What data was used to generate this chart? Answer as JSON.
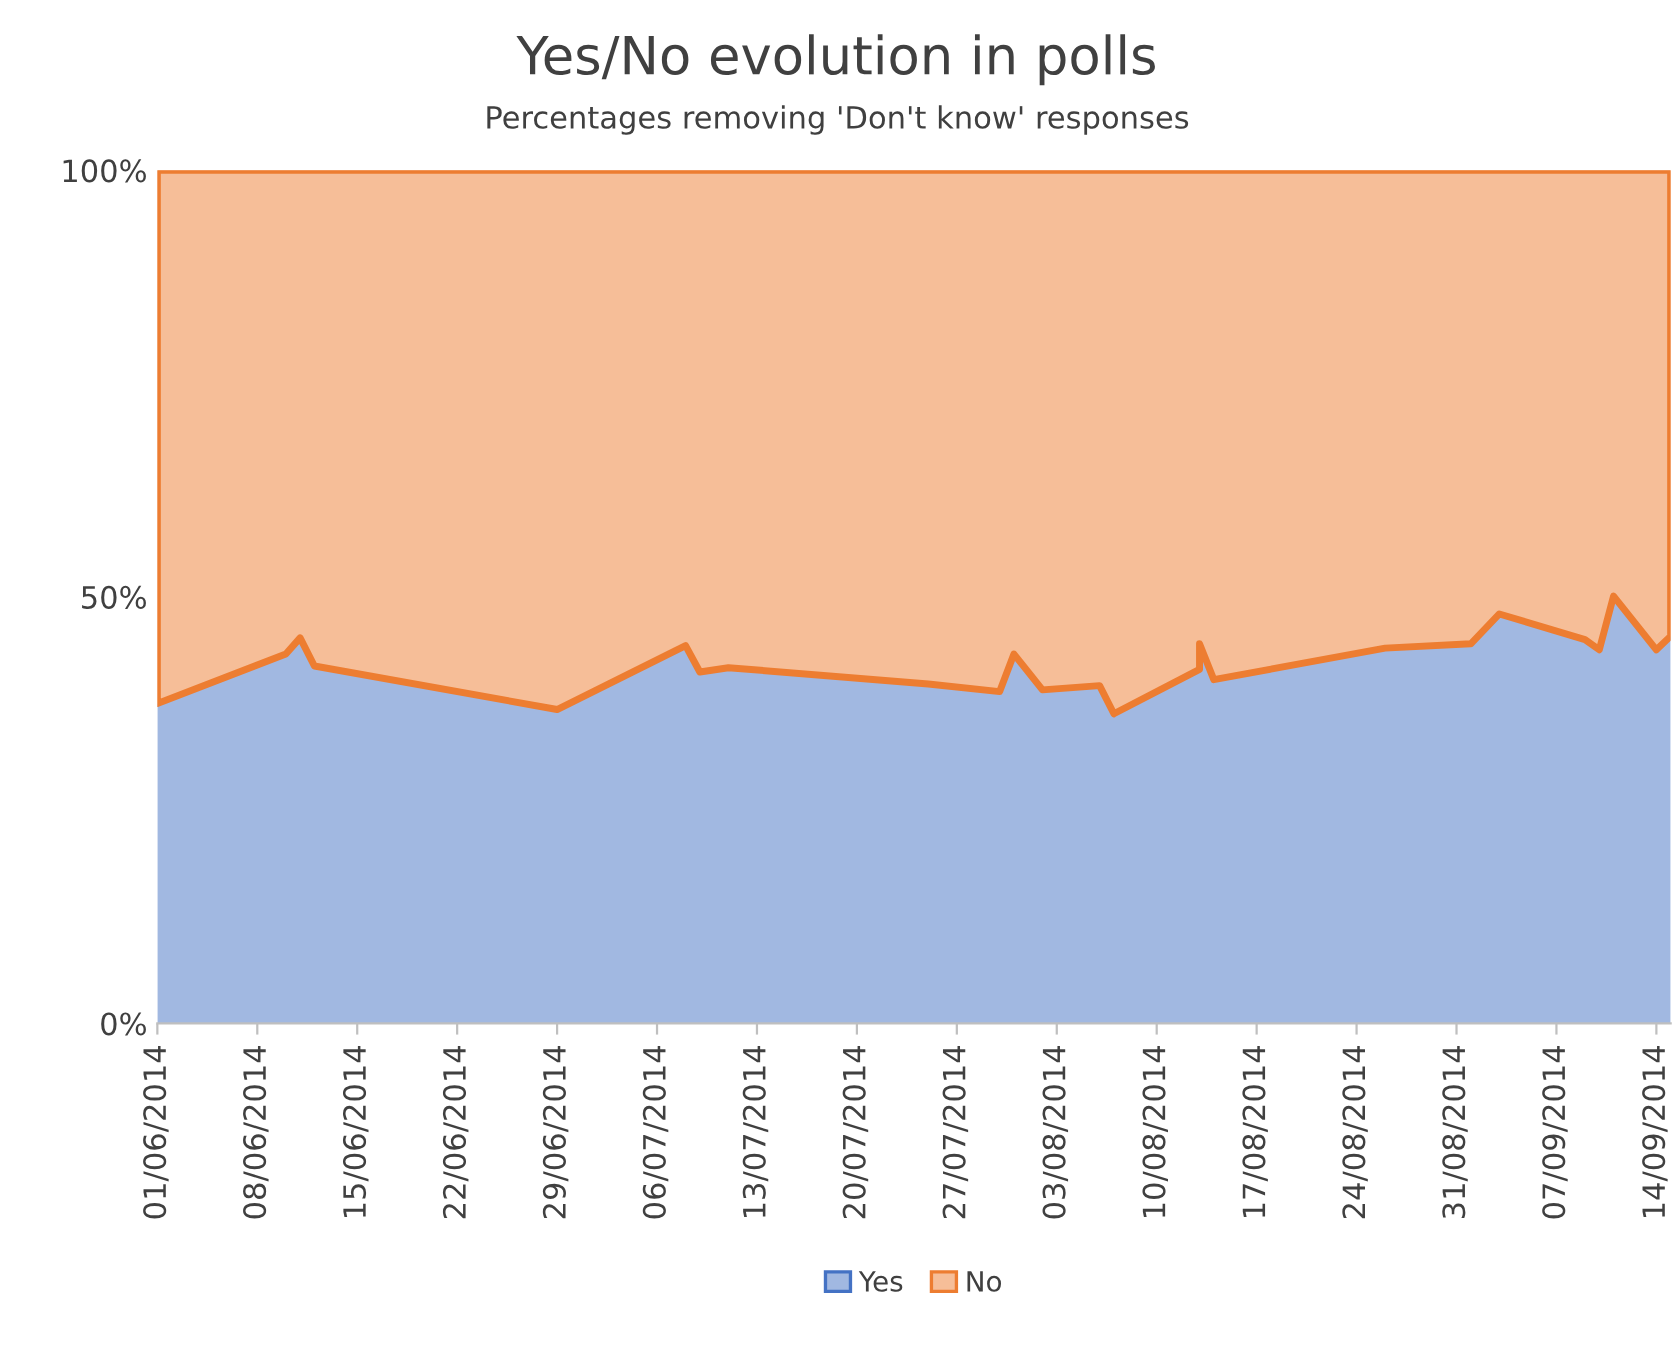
{
  "chart_data": {
    "type": "area",
    "title": "Yes/No evolution in polls",
    "subtitle": "Percentages removing 'Don't know' responses",
    "x": [
      "2014-06-01",
      "2014-06-10",
      "2014-06-11",
      "2014-06-12",
      "2014-06-29",
      "2014-07-08",
      "2014-07-09",
      "2014-07-11",
      "2014-07-25",
      "2014-07-30",
      "2014-07-31",
      "2014-08-02",
      "2014-08-06",
      "2014-08-07",
      "2014-08-13",
      "2014-08-13",
      "2014-08-14",
      "2014-08-26",
      "2014-09-01",
      "2014-09-03",
      "2014-09-09",
      "2014-09-10",
      "2014-09-11",
      "2014-09-14",
      "2014-09-15"
    ],
    "stacked": true,
    "series": [
      {
        "name": "Yes",
        "color": "#4472c4",
        "values": [
          37.5,
          43.3,
          45.2,
          41.9,
          36.8,
          44.3,
          41.2,
          41.7,
          39.8,
          38.9,
          43.3,
          39.1,
          39.6,
          36.3,
          41.5,
          44.5,
          40.3,
          44.0,
          44.5,
          48.0,
          45.0,
          43.8,
          50.1,
          43.8,
          45.4
        ]
      },
      {
        "name": "No",
        "color": "#ed7d31",
        "values": [
          62.5,
          56.7,
          54.8,
          58.1,
          63.2,
          55.7,
          58.8,
          58.3,
          60.2,
          61.1,
          56.7,
          60.9,
          60.4,
          63.7,
          58.5,
          55.5,
          59.7,
          56.0,
          55.5,
          52.0,
          55.0,
          56.2,
          49.9,
          56.2,
          54.6
        ]
      }
    ],
    "xlim": [
      "2014-06-01",
      "2014-09-15"
    ],
    "xticks": [
      {
        "value": "2014-06-01",
        "label": "01/06/2014"
      },
      {
        "value": "2014-06-08",
        "label": "08/06/2014"
      },
      {
        "value": "2014-06-15",
        "label": "15/06/2014"
      },
      {
        "value": "2014-06-22",
        "label": "22/06/2014"
      },
      {
        "value": "2014-06-29",
        "label": "29/06/2014"
      },
      {
        "value": "2014-07-06",
        "label": "06/07/2014"
      },
      {
        "value": "2014-07-13",
        "label": "13/07/2014"
      },
      {
        "value": "2014-07-20",
        "label": "20/07/2014"
      },
      {
        "value": "2014-07-27",
        "label": "27/07/2014"
      },
      {
        "value": "2014-08-03",
        "label": "03/08/2014"
      },
      {
        "value": "2014-08-10",
        "label": "10/08/2014"
      },
      {
        "value": "2014-08-17",
        "label": "17/08/2014"
      },
      {
        "value": "2014-08-24",
        "label": "24/08/2014"
      },
      {
        "value": "2014-08-31",
        "label": "31/08/2014"
      },
      {
        "value": "2014-09-07",
        "label": "07/09/2014"
      },
      {
        "value": "2014-09-14",
        "label": "14/09/2014"
      }
    ],
    "ylim": [
      0,
      100
    ],
    "yticks": [
      {
        "value": 0,
        "label": "0%"
      },
      {
        "value": 50,
        "label": "50%"
      },
      {
        "value": 100,
        "label": "100%"
      }
    ],
    "grid": false,
    "legend": "bottom"
  }
}
